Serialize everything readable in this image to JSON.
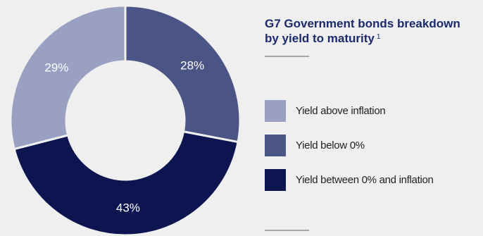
{
  "chart_data": {
    "type": "pie",
    "title": "G7 Government bonds breakdown by yield to maturity",
    "title_footnote": "1",
    "slices": [
      {
        "label": "Yield below 0%",
        "value": 28,
        "display": "28%",
        "color": "#4a5585"
      },
      {
        "label": "Yield between 0% and inflation",
        "value": 43,
        "display": "43%",
        "color": "#0c1550"
      },
      {
        "label": "Yield above inflation",
        "value": 29,
        "display": "29%",
        "color": "#9aa0c2"
      }
    ],
    "legend": [
      {
        "label": "Yield above inflation",
        "color": "#9aa0c2"
      },
      {
        "label": "Yield below 0%",
        "color": "#4a5585"
      },
      {
        "label": "Yield between 0% and inflation",
        "color": "#0c1550"
      }
    ],
    "legend_position": "right",
    "donut": true
  }
}
